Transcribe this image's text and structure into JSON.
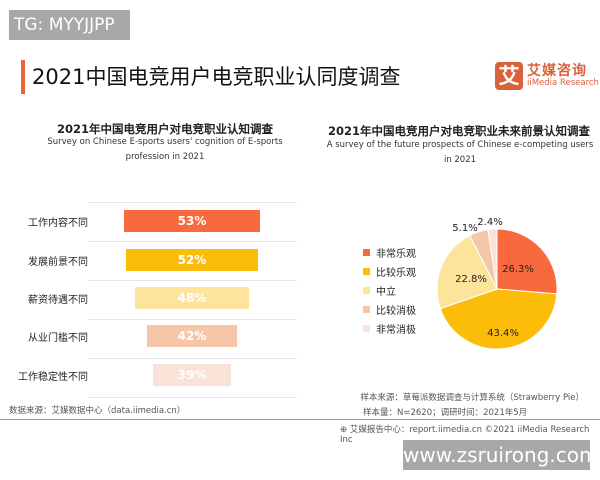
{
  "watermark_top": "TG: MYYJJPP",
  "watermark_bottom": "www.zsruirong.com",
  "header": {
    "title": "2021中国电竞用户电竞职业认同度调查",
    "logo_mark": "艾",
    "logo_cn": "艾媒咨询",
    "logo_en": "iiMedia Research"
  },
  "colors": {
    "accent": "#e8643a",
    "logo": "#d9623a"
  },
  "chart_data": [
    {
      "type": "bar",
      "orientation": "horizontal-centered",
      "title": "2021年中国电竞用户对电竞职业认知调查",
      "subtitle": "Survey on Chinese E-sports users' cognition of E-sports profession in 2021",
      "categories": [
        "工作内容不同",
        "发展前景不同",
        "薪资待遇不同",
        "从业门槛不同",
        "工作稳定性不同"
      ],
      "values": [
        53,
        52,
        48,
        42,
        39
      ],
      "labels": [
        "53%",
        "52%",
        "48%",
        "42%",
        "39%"
      ],
      "colors": [
        "#f86a3e",
        "#fbbd0a",
        "#fce49c",
        "#f5c7a8",
        "#f9e3d8"
      ],
      "grid": true
    },
    {
      "type": "pie",
      "title": "2021年中国电竞用户对电竞职业未来前景认知调查",
      "subtitle": "A survey of the future prospects of Chinese e-competing users in 2021",
      "categories": [
        "非常乐观",
        "比较乐观",
        "中立",
        "比较消极",
        "非常消极"
      ],
      "values": [
        26.3,
        43.4,
        22.8,
        5.1,
        2.4
      ],
      "labels": [
        "26.3%",
        "43.4%",
        "22.8%",
        "5.1%",
        "2.4%"
      ],
      "colors": [
        "#f86a3e",
        "#fbbd0a",
        "#fce49c",
        "#f5c7a8",
        "#f9e3d8"
      ],
      "legend": "left"
    }
  ],
  "footer": {
    "source_left": "数据来源：艾媒数据中心（data.iimedia.cn）",
    "sample_source": "样本来源：草莓派数据调查与计算系统（Strawberry Pie）",
    "sample_size": "样本量：N=2620；调研时间：2021年5月",
    "copyright": "艾媒报告中心：report.iimedia.cn ©2021  iiMedia Research  Inc"
  }
}
